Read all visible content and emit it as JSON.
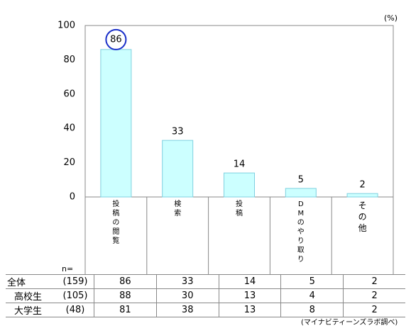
{
  "unit": "(%)",
  "n_label": "n=",
  "source": "(マイナビティーンズラボ調べ)",
  "chart_data": {
    "type": "bar",
    "categories": [
      "投稿の閲覧",
      "検索",
      "投稿",
      "DMのやり取り",
      "その他"
    ],
    "values": [
      86,
      33,
      14,
      5,
      2
    ],
    "ylim": [
      0,
      100
    ],
    "yticks": [
      0,
      20,
      40,
      60,
      80,
      100
    ],
    "highlight_index": 0,
    "grid": false,
    "colors": {
      "bar_fill": "#ccffff",
      "bar_stroke": "#7fd0e0",
      "highlight_ring": "#1a2fc9",
      "frame": "#888888"
    }
  },
  "table": {
    "rows": [
      {
        "group": "全体",
        "n": "(159)",
        "values": [
          "86",
          "33",
          "14",
          "5",
          "2"
        ]
      },
      {
        "group": "高校生",
        "n": "(105)",
        "values": [
          "88",
          "30",
          "13",
          "4",
          "2"
        ]
      },
      {
        "group": "大学生",
        "n": "(48)",
        "values": [
          "81",
          "38",
          "13",
          "8",
          "2"
        ]
      }
    ]
  }
}
